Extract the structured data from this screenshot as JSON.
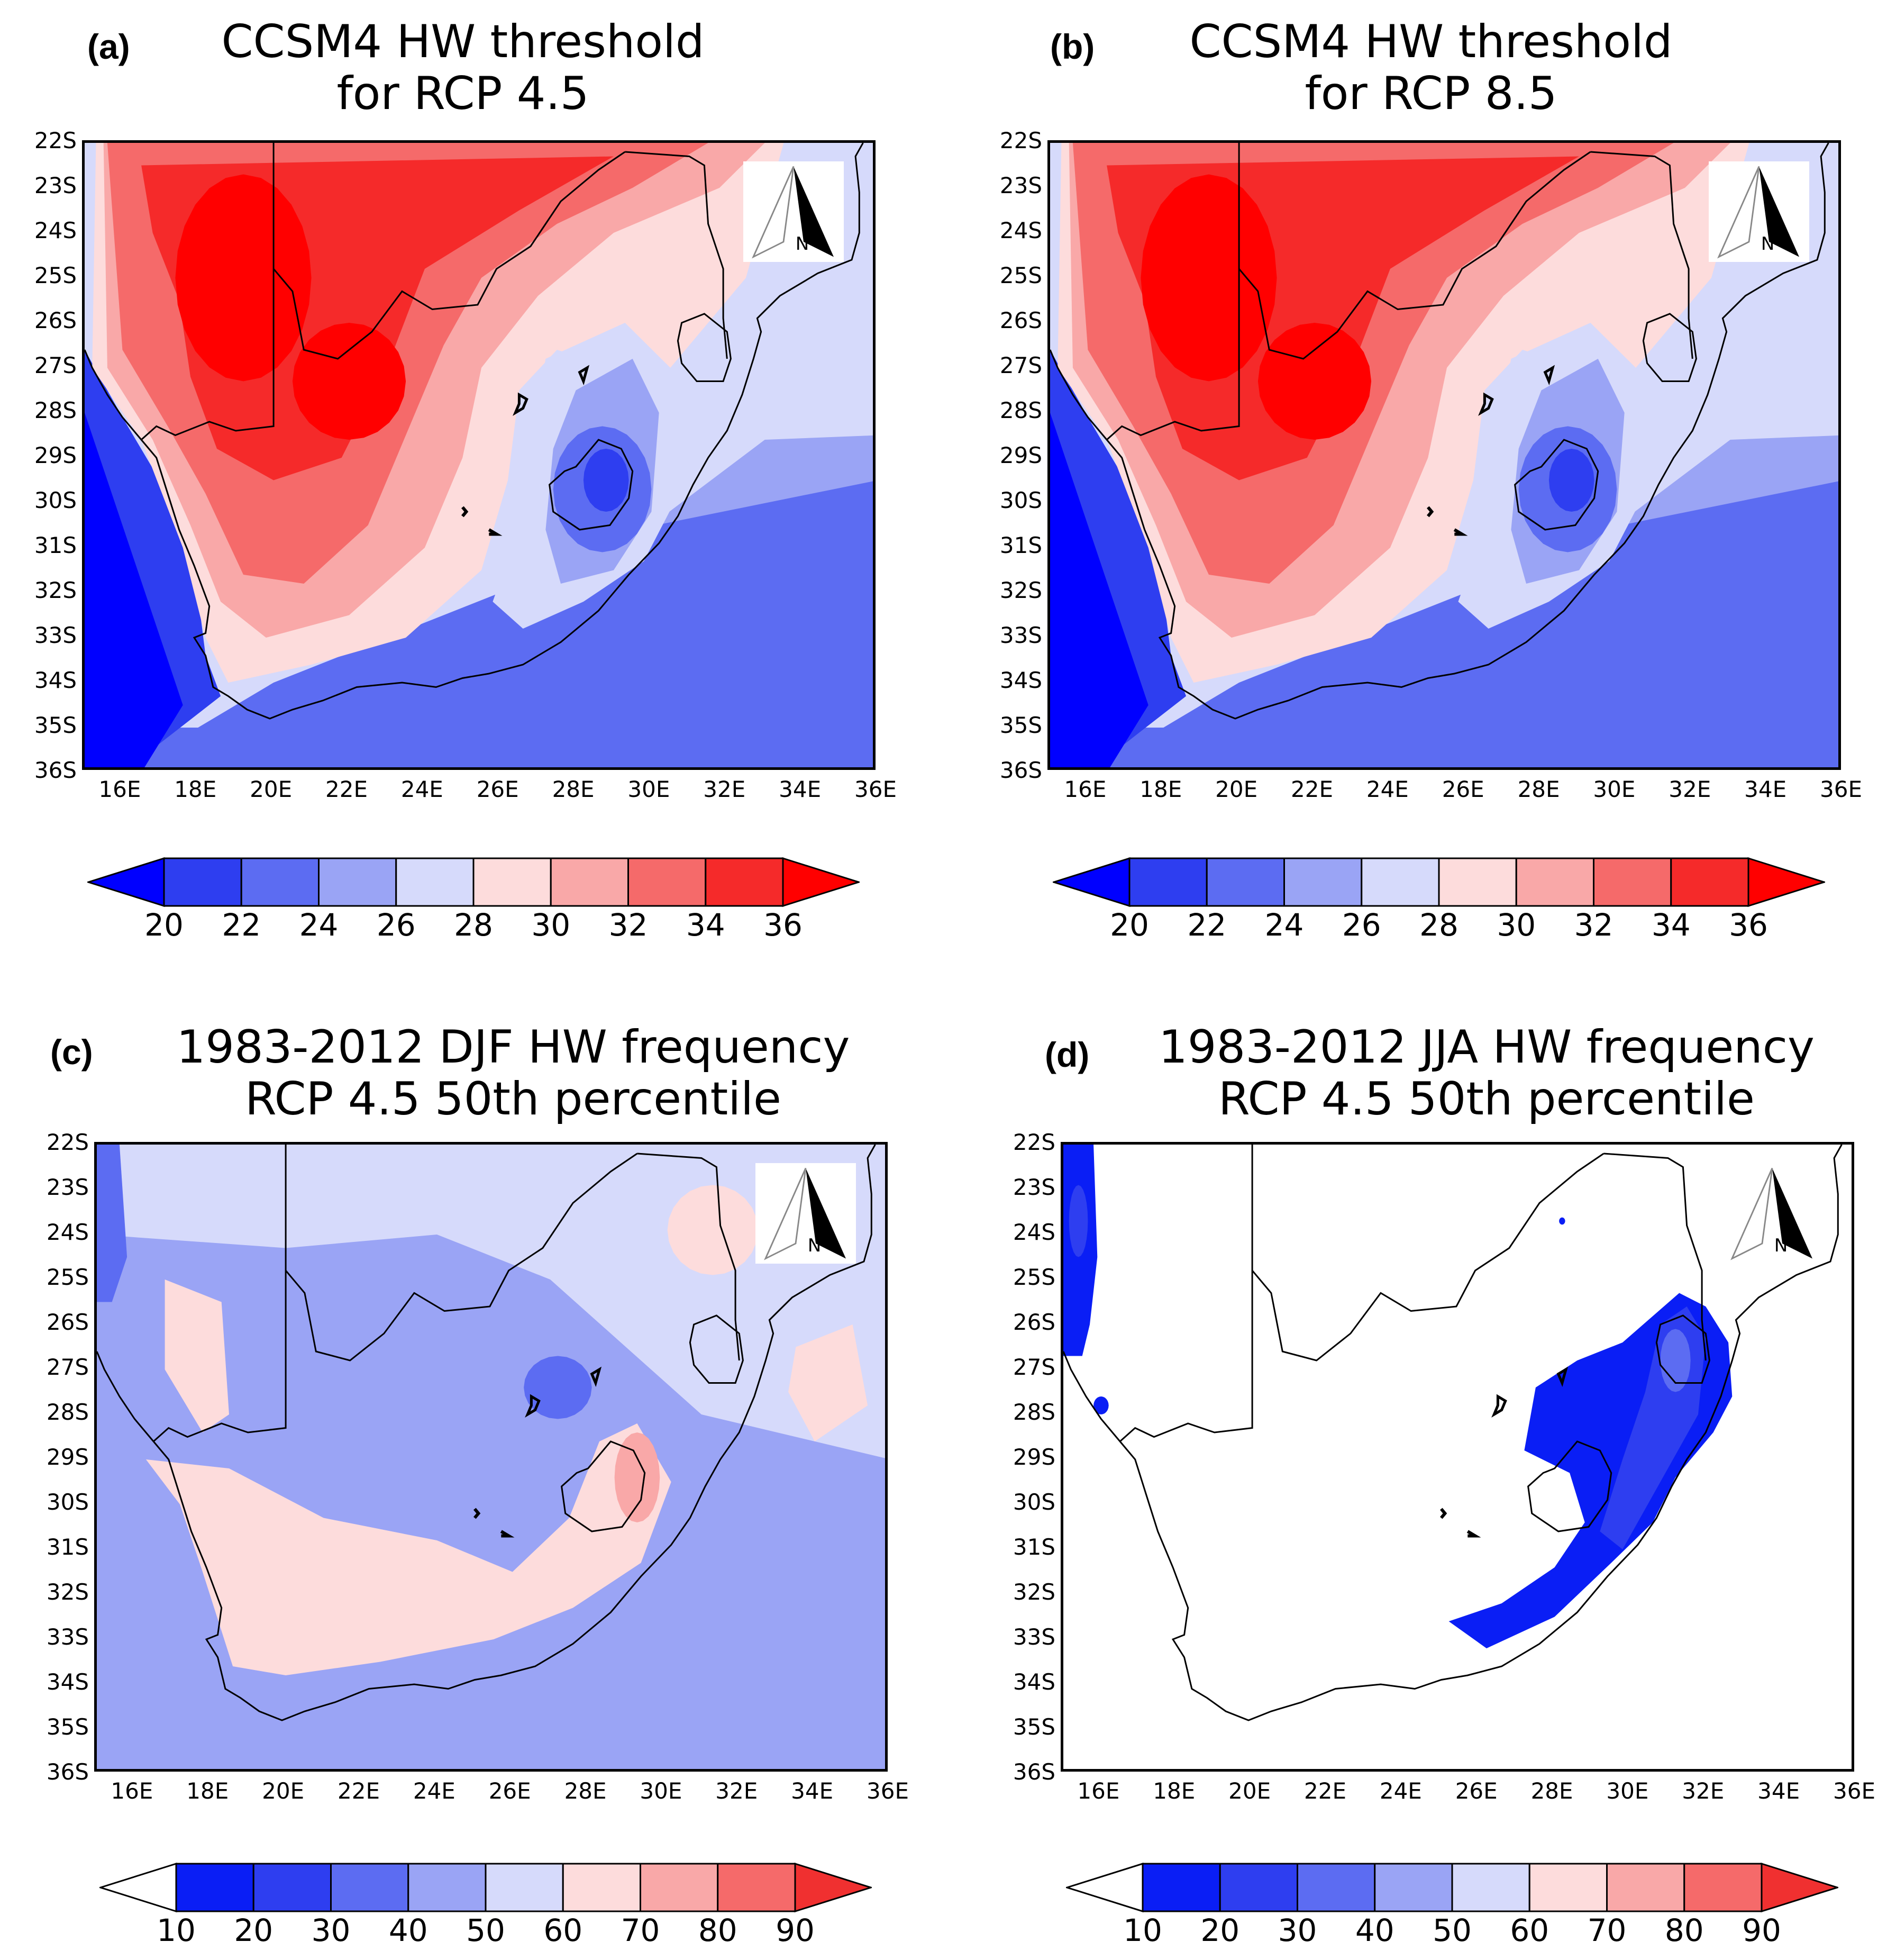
{
  "panels": [
    {
      "letter": "(a)",
      "title_line1": "CCSM4 HW threshold",
      "title_line2": "for RCP 4.5",
      "type": "threshold",
      "colorbar": [
        "20",
        "22",
        "24",
        "26",
        "28",
        "30",
        "32",
        "34",
        "36"
      ]
    },
    {
      "letter": "(b)",
      "title_line1": "CCSM4 HW threshold",
      "title_line2": "for RCP 8.5",
      "type": "threshold",
      "colorbar": [
        "20",
        "22",
        "24",
        "26",
        "28",
        "30",
        "32",
        "34",
        "36"
      ]
    },
    {
      "letter": "(c)",
      "title_line1": "1983-2012 DJF HW frequency",
      "title_line2": "RCP 4.5 50th percentile",
      "type": "djf",
      "colorbar": [
        "10",
        "20",
        "30",
        "40",
        "50",
        "60",
        "70",
        "80",
        "90"
      ]
    },
    {
      "letter": "(d)",
      "title_line1": "1983-2012 JJA HW frequency",
      "title_line2": "RCP 4.5 50th percentile",
      "type": "jja",
      "colorbar": [
        "10",
        "20",
        "30",
        "40",
        "50",
        "60",
        "70",
        "80",
        "90"
      ]
    }
  ],
  "lat_labels": [
    "22S",
    "23S",
    "24S",
    "25S",
    "26S",
    "27S",
    "28S",
    "29S",
    "30S",
    "31S",
    "32S",
    "33S",
    "34S",
    "35S",
    "36S"
  ],
  "lon_labels": [
    "16E",
    "18E",
    "20E",
    "22E",
    "24E",
    "26E",
    "28E",
    "30E",
    "32E",
    "34E",
    "36E"
  ],
  "north_arrow_label": "N",
  "colors": {
    "threshold_scale": [
      "#0000ff",
      "#2e3ef0",
      "#5c6cf2",
      "#9aa4f5",
      "#d6dafb",
      "#fddcdc",
      "#f9a8a8",
      "#f56a6a",
      "#f52a2a",
      "#ff0000"
    ],
    "freq_scale": [
      "#ffffff",
      "#0a1ef5",
      "#2e3ef0",
      "#5c6cf2",
      "#9aa4f5",
      "#d6dafb",
      "#fddcdc",
      "#f9a8a8",
      "#f56a6a",
      "#f03030"
    ]
  }
}
